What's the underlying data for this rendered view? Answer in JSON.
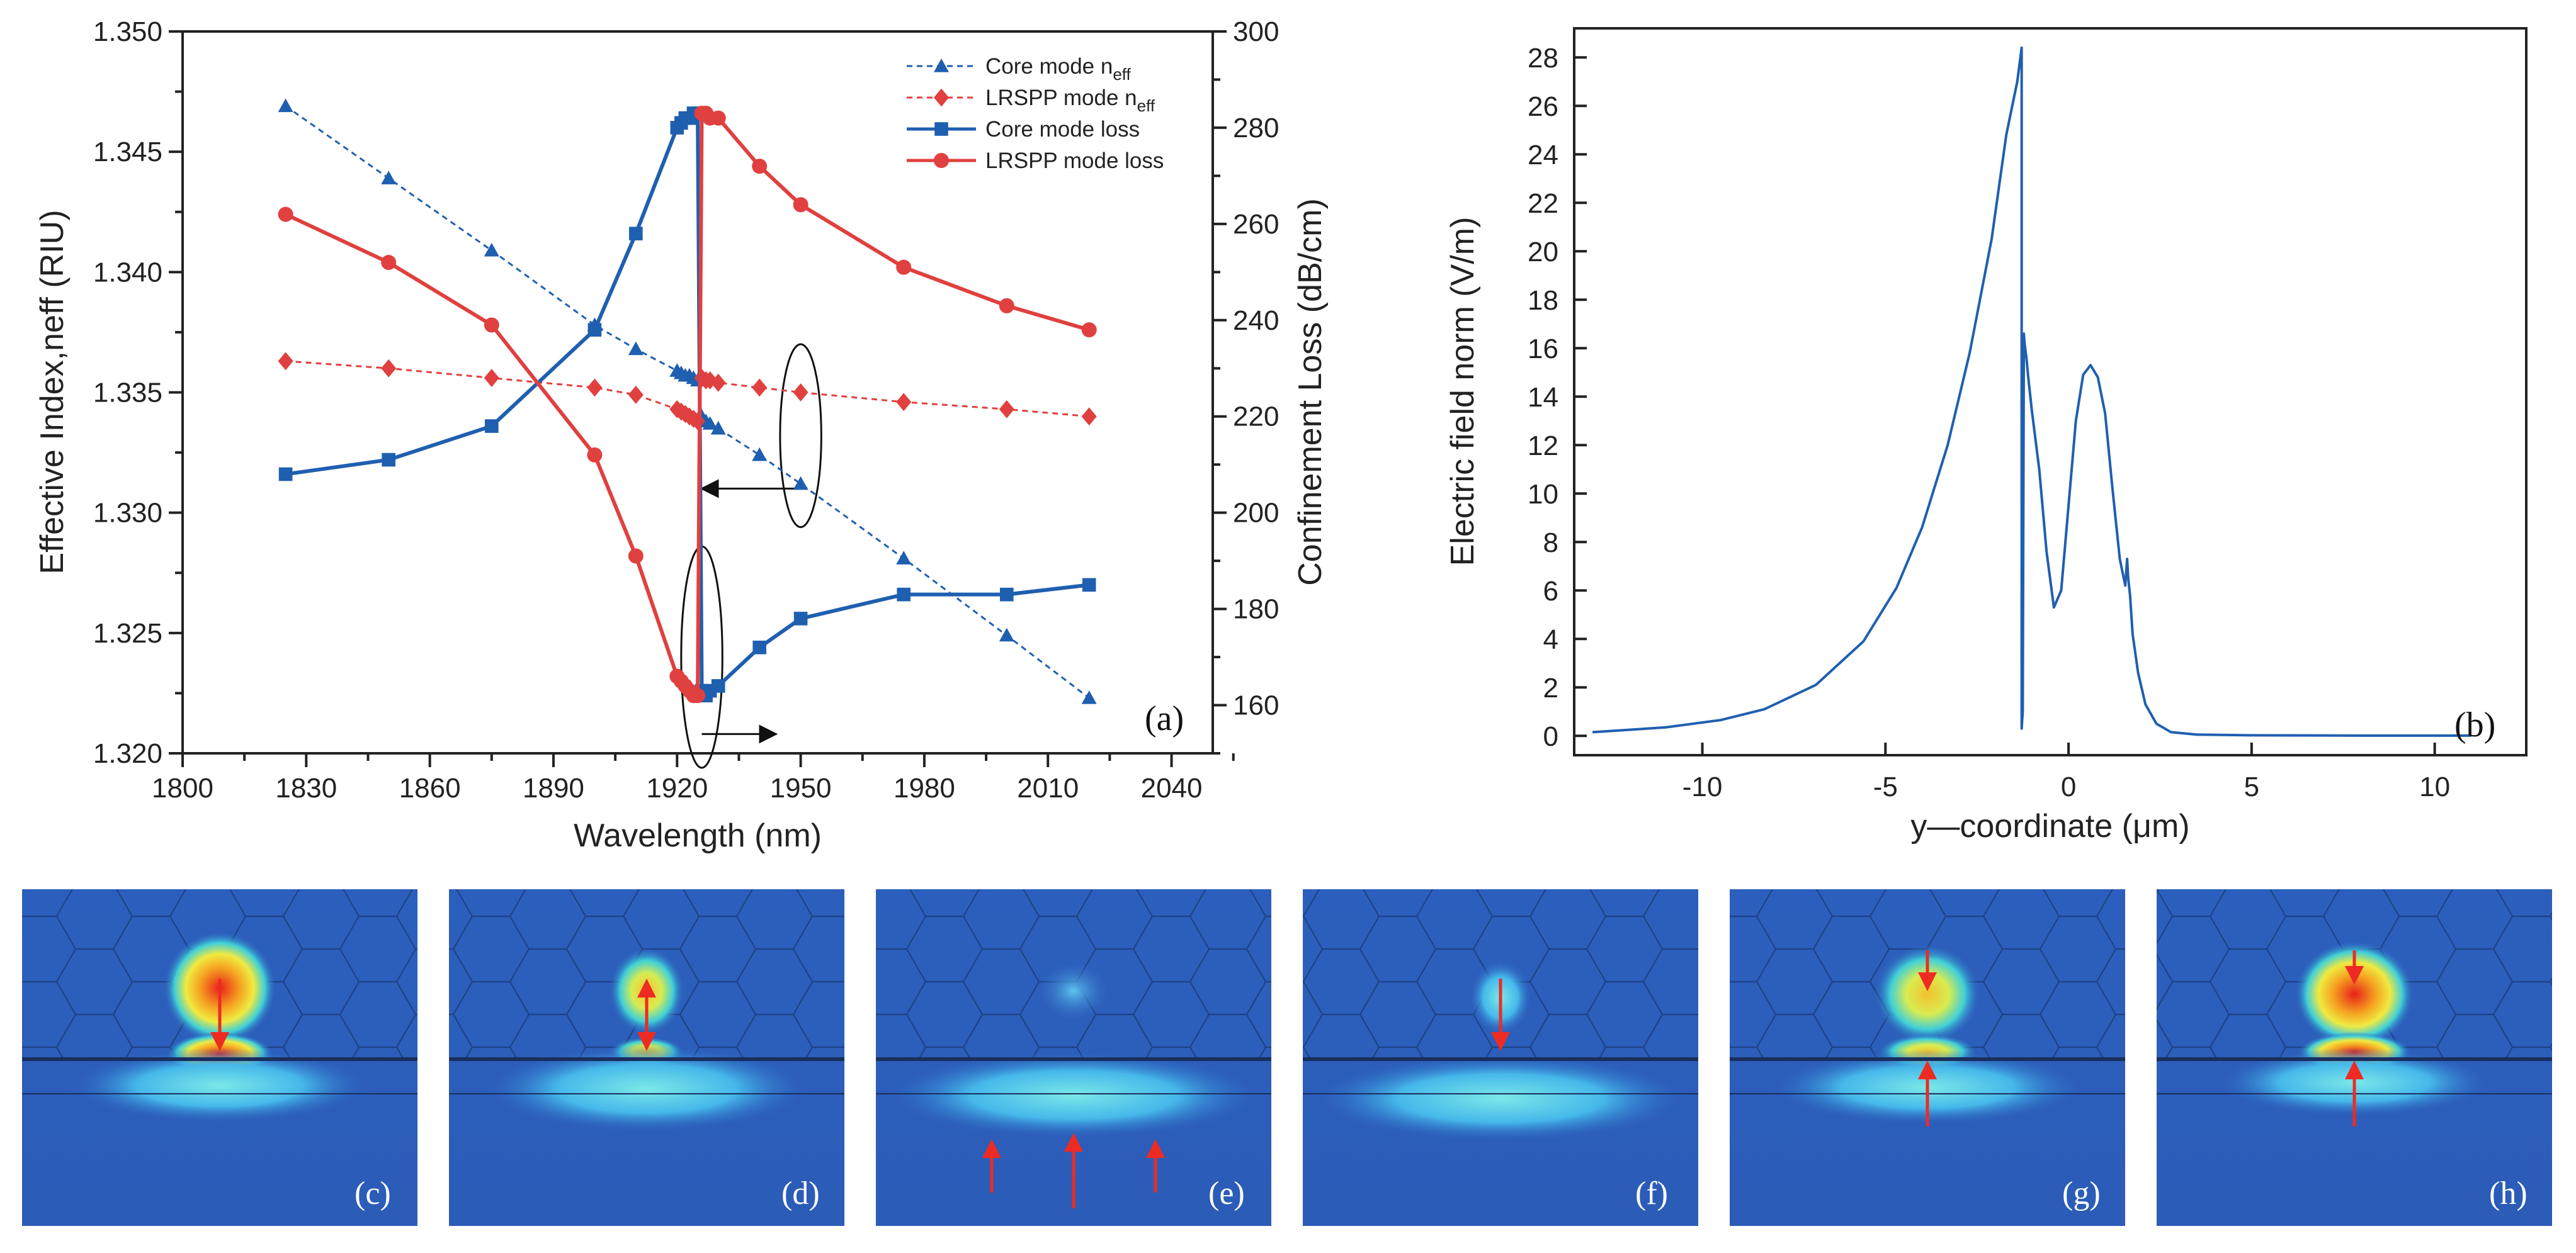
{
  "chart_data": [
    {
      "id": "a",
      "type": "line",
      "panel_label": "(a)",
      "xlabel": "Wavelength (nm)",
      "ylabel_left": "Effective Index,neff (RIU)",
      "ylabel_right": "Confinement Loss (dB/cm)",
      "xlim": [
        1800,
        2050
      ],
      "ylim_left": [
        1.32,
        1.35
      ],
      "ylim_right": [
        150,
        300
      ],
      "x_ticks": [
        "1800",
        "1830",
        "1860",
        "1890",
        "1920",
        "1950",
        "1980",
        "2010",
        "2040"
      ],
      "x_tick_values": [
        1800,
        1830,
        1860,
        1890,
        1920,
        1950,
        1980,
        2010,
        2040
      ],
      "y_left_ticks": [
        "1.320",
        "1.325",
        "1.330",
        "1.335",
        "1.340",
        "1.345",
        "1.350"
      ],
      "y_left_tick_values": [
        1.32,
        1.325,
        1.33,
        1.335,
        1.34,
        1.345,
        1.35
      ],
      "y_right_ticks": [
        "160",
        "180",
        "200",
        "220",
        "240",
        "260",
        "280",
        "300"
      ],
      "y_right_tick_values": [
        160,
        180,
        200,
        220,
        240,
        260,
        280,
        300
      ],
      "series": [
        {
          "name": "Core  mode n",
          "sub": "eff",
          "color": "#1f5fb0",
          "dashed": true,
          "marker": "triangle",
          "axis": "left",
          "x": [
            1825,
            1850,
            1875,
            1900,
            1910,
            1920,
            1921,
            1922,
            1923,
            1924,
            1925,
            1926,
            1927,
            1928,
            1930,
            1940,
            1950,
            1975,
            2000,
            2020
          ],
          "y": [
            1.3469,
            1.3439,
            1.3409,
            1.3378,
            1.3368,
            1.3359,
            1.3358,
            1.3357,
            1.3357,
            1.3356,
            1.3355,
            1.334,
            1.3338,
            1.3337,
            1.3335,
            1.3324,
            1.3312,
            1.3281,
            1.3249,
            1.3223
          ]
        },
        {
          "name": "LRSPP mode n",
          "sub": "eff",
          "color": "#e0403f",
          "dashed": true,
          "marker": "diamond",
          "axis": "left",
          "x": [
            1825,
            1850,
            1875,
            1900,
            1910,
            1920,
            1921,
            1922,
            1923,
            1924,
            1925,
            1926,
            1927,
            1928,
            1930,
            1940,
            1950,
            1975,
            2000,
            2020
          ],
          "y": [
            1.3363,
            1.336,
            1.3356,
            1.3352,
            1.3349,
            1.3343,
            1.3342,
            1.3341,
            1.334,
            1.3339,
            1.3338,
            1.3356,
            1.3355,
            1.3355,
            1.3354,
            1.3352,
            1.335,
            1.3346,
            1.3343,
            1.334
          ]
        },
        {
          "name": "Core  mode loss",
          "color": "#1f5fb0",
          "dashed": false,
          "marker": "square",
          "axis": "right",
          "x": [
            1825,
            1850,
            1875,
            1900,
            1910,
            1920,
            1921,
            1922,
            1923,
            1924,
            1925,
            1926,
            1927,
            1928,
            1930,
            1940,
            1950,
            1975,
            2000,
            2020
          ],
          "y": [
            208,
            211,
            218,
            238,
            258,
            280,
            281,
            282,
            282,
            283,
            283,
            163,
            162,
            163,
            164,
            172,
            178,
            183,
            183,
            185
          ]
        },
        {
          "name": "LRSPP mode loss",
          "color": "#e0403f",
          "dashed": false,
          "marker": "circle",
          "axis": "right",
          "x": [
            1825,
            1850,
            1875,
            1900,
            1910,
            1920,
            1921,
            1922,
            1923,
            1924,
            1925,
            1926,
            1927,
            1928,
            1930,
            1940,
            1950,
            1975,
            2000,
            2020
          ],
          "y": [
            262,
            252,
            239,
            212,
            191,
            166,
            165,
            164,
            163,
            162,
            162,
            283,
            283,
            282,
            282,
            272,
            264,
            251,
            243,
            238
          ]
        }
      ],
      "annotations": [
        {
          "type": "ellipse",
          "cx": 1950,
          "cy_right": 216,
          "rx_data": 5,
          "ry_right": 19,
          "arrow_to_x": 1926,
          "arrow_y_right": 205
        },
        {
          "type": "ellipse",
          "cx": 1926,
          "cy_right": 170,
          "rx_data": 5,
          "ry_right": 23,
          "arrow_to_x": 1944,
          "arrow_y_right": 154
        }
      ]
    },
    {
      "id": "b",
      "type": "line",
      "panel_label": "(b)",
      "xlabel": "y—coordinate (μm)",
      "ylabel": "Electric field norm (V/m)",
      "xlim": [
        -13.5,
        12.5
      ],
      "ylim": [
        -0.8,
        29.2
      ],
      "x_ticks": [
        "-10",
        "-5",
        "0",
        "5",
        "10"
      ],
      "x_tick_values": [
        -10,
        -5,
        0,
        5,
        10
      ],
      "y_ticks": [
        "0",
        "2",
        "4",
        "6",
        "8",
        "10",
        "12",
        "14",
        "16",
        "18",
        "20",
        "22",
        "24",
        "26",
        "28"
      ],
      "y_tick_values": [
        0,
        2,
        4,
        6,
        8,
        10,
        12,
        14,
        16,
        18,
        20,
        22,
        24,
        26,
        28
      ],
      "color": "#1f5fb0",
      "x": [
        -13,
        -11,
        -9.5,
        -8.3,
        -6.9,
        -5.6,
        -4.7,
        -4.0,
        -3.3,
        -2.7,
        -2.1,
        -1.7,
        -1.4,
        -1.28,
        -1.28,
        -1.25,
        -1.22,
        -1.2,
        -1.15,
        -1.1,
        -1.0,
        -0.8,
        -0.6,
        -0.4,
        -0.2,
        0.0,
        0.2,
        0.4,
        0.6,
        0.8,
        1.0,
        1.2,
        1.4,
        1.55,
        1.6,
        1.63,
        1.68,
        1.75,
        1.9,
        2.1,
        2.4,
        2.8,
        3.5,
        5,
        8,
        11
      ],
      "y": [
        0.15,
        0.35,
        0.65,
        1.1,
        2.1,
        3.9,
        6.1,
        8.6,
        12.0,
        15.8,
        20.5,
        24.8,
        27.0,
        28.4,
        0.3,
        1.0,
        16.6,
        16.2,
        15.6,
        14.8,
        13.4,
        11.0,
        7.6,
        5.3,
        6.0,
        9.5,
        13.0,
        14.9,
        15.3,
        14.8,
        13.3,
        10.2,
        7.3,
        6.2,
        7.3,
        6.5,
        5.8,
        4.2,
        2.6,
        1.3,
        0.5,
        0.15,
        0.05,
        0.02,
        0.01,
        0.01
      ]
    }
  ],
  "mode_panels": [
    "(c)",
    "(d)",
    "(e)",
    "(f)",
    "(g)",
    "(h)"
  ],
  "colors": {
    "core_blue": "#1f5fb0",
    "lrspp_red": "#e0403f",
    "field_background": "#2b5fbf",
    "field_hot": "#e8201a"
  }
}
